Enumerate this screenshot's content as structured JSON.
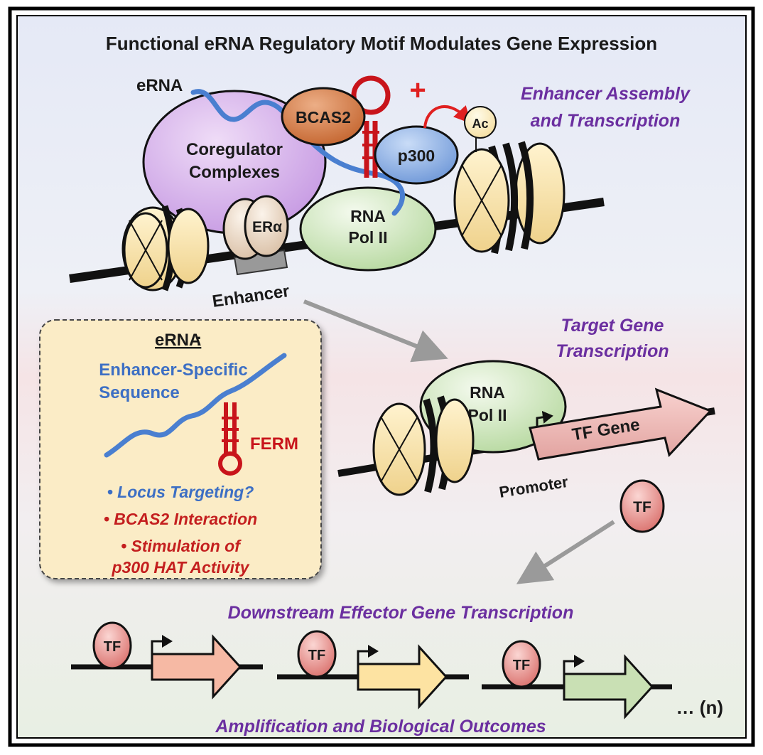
{
  "title": "Functional eRNA Regulatory Motif Modulates Gene Expression",
  "enhancer_section": {
    "erna_label": "eRNA",
    "coregulator": [
      "Coregulator",
      "Complexes"
    ],
    "bcas2": "BCAS2",
    "p300": "p300",
    "ac": "Ac",
    "plus": "+",
    "era": "ERα",
    "rnapol": [
      "RNA",
      "Pol II"
    ],
    "enhancer_label": "Enhancer",
    "heading": [
      "Enhancer Assembly",
      "and Transcription"
    ]
  },
  "target_section": {
    "heading": [
      "Target Gene",
      "Transcription"
    ],
    "rnapol": [
      "RNA",
      "Pol II"
    ],
    "tf_gene": "TF Gene",
    "promoter": "Promoter",
    "tf": "TF"
  },
  "erna_box": {
    "title": "eRNA",
    "colon": ":",
    "sequence": [
      "Enhancer-Specific",
      "Sequence"
    ],
    "ferm": "FERM",
    "bullets": [
      {
        "lines": [
          "• Locus Targeting?"
        ],
        "color": "#3d6fc4"
      },
      {
        "lines": [
          "• BCAS2 Interaction"
        ],
        "color": "#c41f1f"
      },
      {
        "lines": [
          "• Stimulation of",
          "p300 HAT Activity"
        ],
        "color": "#c41f1f"
      }
    ]
  },
  "downstream": {
    "heading": "Downstream Effector Gene Transcription",
    "tf": "TF",
    "more": "… (n)",
    "footer": "Amplification and Biological Outcomes",
    "gene_colors": [
      "#f6b9a4",
      "#fde3a2",
      "#c9e0b4"
    ]
  },
  "colors": {
    "heading_purple": "#6b2fa0",
    "erna_blue": "#4a7fd0",
    "hairpin_red": "#c8141b"
  }
}
